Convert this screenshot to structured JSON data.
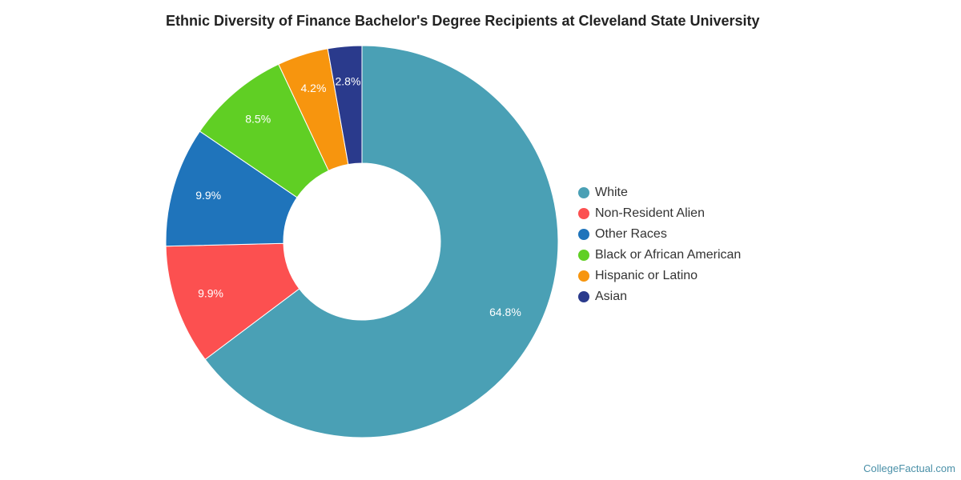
{
  "chart_data": {
    "type": "pie",
    "title": "Ethnic Diversity of Finance Bachelor's Degree Recipients at Cleveland State University",
    "categories": [
      "White",
      "Non-Resident Alien",
      "Other Races",
      "Black or African American",
      "Hispanic or Latino",
      "Asian"
    ],
    "values": [
      64.8,
      9.9,
      9.9,
      8.5,
      4.2,
      2.8
    ],
    "labels": [
      "64.8%",
      "9.9%",
      "9.9%",
      "8.5%",
      "4.2%",
      "2.8%"
    ],
    "colors": [
      "#4aa0b5",
      "#fc5050",
      "#1f74bb",
      "#60cf24",
      "#f7950e",
      "#2a3a8c"
    ],
    "legend_position": "right",
    "donut": true
  },
  "watermark": "CollegeFactual.com"
}
